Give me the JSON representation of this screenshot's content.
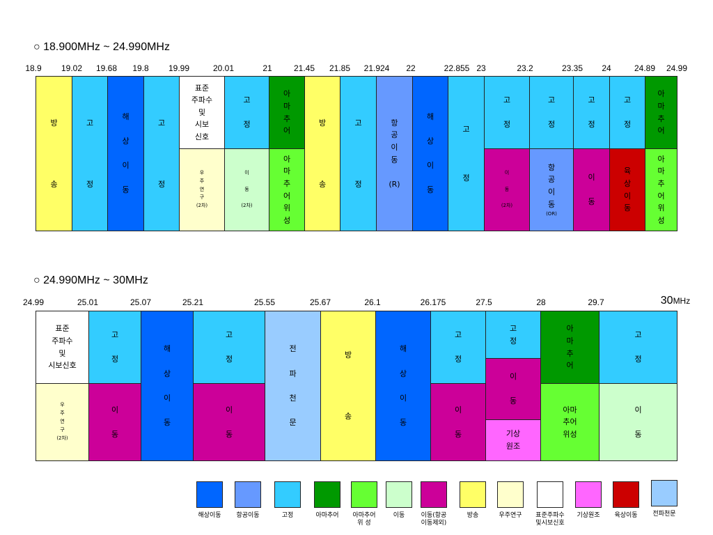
{
  "colors": {
    "broadcast": "#ffff66",
    "fixed": "#33ccff",
    "maritime": "#0066ff",
    "aero": "#6699ff",
    "amateur": "#009900",
    "amsat": "#66ff33",
    "mobile": "#ccffcc",
    "mobile_ex": "#cc0099",
    "space": "#ffffcc",
    "std": "#ffffff",
    "meteo": "#ff66ff",
    "land": "#cc0000",
    "radioastro": "#99ccff"
  },
  "chart_data": [
    {
      "type": "table",
      "title": "○ 18.900MHz ~ 24.990MHz",
      "freq_labels": [
        "18.9",
        "19.02",
        "19.68",
        "19.8",
        "19.99",
        "20.01",
        "21",
        "21.45",
        "21.85",
        "21.924",
        "22",
        "22.855",
        "23",
        "23.2",
        "23.35",
        "24",
        "24.89",
        "24.99"
      ],
      "cells": [
        {
          "col": 0,
          "row": "full",
          "svc": "broadcast",
          "text": "방\n\n\n\n\n송"
        },
        {
          "col": 1,
          "row": "full",
          "svc": "fixed",
          "text": "고\n\n\n\n\n정"
        },
        {
          "col": 2,
          "row": "full",
          "svc": "maritime",
          "text": "해\n\n상\n\n이\n\n동"
        },
        {
          "col": 3,
          "row": "full",
          "svc": "fixed",
          "text": "고\n\n\n\n\n정"
        },
        {
          "col": 4,
          "row": "top",
          "svc": "std",
          "text": "표준\n주파수\n및\n시보\n신호"
        },
        {
          "col": 4,
          "row": "bot",
          "svc": "space",
          "text": "우\n주\n연\n구\n(2차)",
          "small": true
        },
        {
          "col": 5,
          "row": "top",
          "svc": "fixed",
          "text": "고\n\n정"
        },
        {
          "col": 5,
          "row": "bot",
          "svc": "mobile",
          "text": "이\n\n동\n\n(2차)",
          "small": true
        },
        {
          "col": 6,
          "row": "top",
          "svc": "amateur",
          "text": "아\n마\n추\n어"
        },
        {
          "col": 6,
          "row": "bot",
          "svc": "amsat",
          "text": "아\n마\n추\n어\n위\n성"
        },
        {
          "col": 7,
          "row": "full",
          "svc": "broadcast",
          "text": "방\n\n\n\n\n송"
        },
        {
          "col": 8,
          "row": "full",
          "svc": "fixed",
          "text": "고\n\n\n\n\n정"
        },
        {
          "col": 9,
          "row": "full",
          "svc": "aero",
          "text": "항\n공\n이\n동\n\n(R)"
        },
        {
          "col": 10,
          "row": "full",
          "svc": "maritime",
          "text": "해\n\n상\n\n이\n\n동"
        },
        {
          "col": 11,
          "row": "full",
          "svc": "fixed",
          "text": "고\n\n\n\n정"
        },
        {
          "col": 12,
          "row": "top",
          "svc": "fixed",
          "text": "고\n\n정"
        },
        {
          "col": 12,
          "row": "bot",
          "svc": "mobile_ex",
          "text": "이\n\n동\n\n(2차)",
          "small": true
        },
        {
          "col": 13,
          "row": "top",
          "svc": "fixed",
          "text": "고\n\n정"
        },
        {
          "col": 13,
          "row": "bot",
          "svc": "aero",
          "text": "항\n공\n이\n동",
          "sub": "(OR)"
        },
        {
          "col": 14,
          "row": "top",
          "svc": "fixed",
          "text": "고\n\n정"
        },
        {
          "col": 14,
          "row": "bot",
          "svc": "mobile_ex",
          "text": "이\n\n동"
        },
        {
          "col": 15,
          "row": "top",
          "svc": "fixed",
          "text": "고\n\n정"
        },
        {
          "col": 15,
          "row": "bot",
          "svc": "land",
          "text": "육\n상\n이\n동"
        },
        {
          "col": 16,
          "row": "top",
          "svc": "amateur",
          "text": "아\n마\n추\n어"
        },
        {
          "col": 16,
          "row": "bot",
          "svc": "amsat",
          "text": "아\n마\n추\n어\n위\n성"
        }
      ]
    },
    {
      "type": "table",
      "title": "○ 24.990MHz ~ 30MHz",
      "freq_labels": [
        "24.99",
        "25.01",
        "25.07",
        "25.21",
        "25.55",
        "25.67",
        "26.1",
        "26.175",
        "27.5",
        "28",
        "29.7",
        "30MHz"
      ],
      "cells": [
        {
          "col": 0,
          "row": "top",
          "svc": "std",
          "text": "표준\n주파수\n및\n시보신호"
        },
        {
          "col": 0,
          "row": "bot",
          "svc": "space",
          "text": "우\n주\n연\n구\n(2차)",
          "small": true
        },
        {
          "col": 1,
          "row": "top",
          "svc": "fixed",
          "text": "고\n\n정"
        },
        {
          "col": 1,
          "row": "bot",
          "svc": "mobile_ex",
          "text": "이\n\n동"
        },
        {
          "col": 2,
          "row": "full",
          "svc": "maritime",
          "text": "해\n\n상\n\n이\n\n동"
        },
        {
          "col": 3,
          "row": "top",
          "svc": "fixed",
          "text": "고\n\n정"
        },
        {
          "col": 3,
          "row": "bot",
          "svc": "mobile_ex",
          "text": "이\n\n동"
        },
        {
          "col": 4,
          "row": "full",
          "svc": "radioastro",
          "text": "전\n\n파\n\n천\n\n문"
        },
        {
          "col": 5,
          "row": "full",
          "svc": "broadcast",
          "text": "방\n\n\n\n\n송"
        },
        {
          "col": 6,
          "row": "full",
          "svc": "maritime",
          "text": "해\n\n상\n\n이\n\n동"
        },
        {
          "col": 7,
          "row": "top",
          "svc": "fixed",
          "text": "고\n\n정"
        },
        {
          "col": 7,
          "row": "bot",
          "svc": "mobile_ex",
          "text": "이\n\n동"
        },
        {
          "col": 8,
          "row": "t2",
          "svc": "fixed",
          "text": "고\n정"
        },
        {
          "col": 8,
          "row": "m2",
          "svc": "mobile_ex",
          "text": "이\n\n동"
        },
        {
          "col": 8,
          "row": "b2",
          "svc": "meteo",
          "text": "기상\n원조"
        },
        {
          "col": 9,
          "row": "top",
          "svc": "amateur",
          "text": "아\n마\n추\n어"
        },
        {
          "col": 9,
          "row": "bot",
          "svc": "amsat",
          "text": "아마\n추어\n위성"
        },
        {
          "col": 10,
          "row": "top",
          "svc": "fixed",
          "text": "고\n\n정"
        },
        {
          "col": 10,
          "row": "bot",
          "svc": "mobile",
          "text": "이\n\n동"
        }
      ]
    }
  ],
  "legend": [
    {
      "svc": "maritime",
      "label": "해상이동"
    },
    {
      "svc": "aero",
      "label": "항공이동"
    },
    {
      "svc": "fixed",
      "label": "고정"
    },
    {
      "svc": "amateur",
      "label": "아마추어"
    },
    {
      "svc": "amsat",
      "label": "아마추어\n위    성"
    },
    {
      "svc": "mobile",
      "label": "이동"
    },
    {
      "svc": "mobile_ex",
      "label": "이동(항공\n이동제외)"
    },
    {
      "svc": "broadcast",
      "label": "방송"
    },
    {
      "svc": "space",
      "label": "우주연구"
    },
    {
      "svc": "std",
      "label": "표준주파수\n및시보신호"
    },
    {
      "svc": "meteo",
      "label": "기상원조"
    },
    {
      "svc": "land",
      "label": "육상이동"
    },
    {
      "svc": "radioastro",
      "label": "전파천문"
    }
  ]
}
